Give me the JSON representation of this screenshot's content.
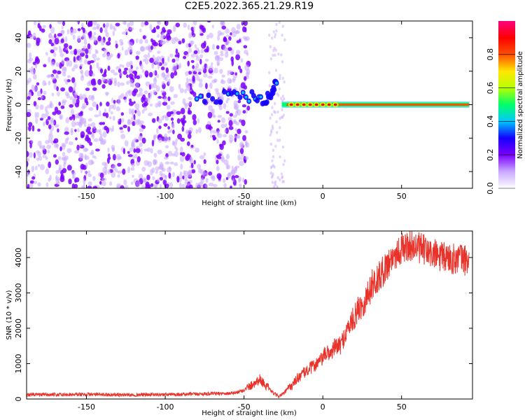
{
  "title": "C2E5.2022.365.21.29.R19",
  "chart_data": [
    {
      "type": "heatmap",
      "xlabel": "Height of straight line (km)",
      "ylabel": "Frequency (Hz)",
      "xlim": [
        -188,
        95
      ],
      "ylim": [
        -50,
        50
      ],
      "xticks": [
        -150,
        -100,
        -50,
        0,
        50
      ],
      "yticks": [
        -40,
        -20,
        0,
        20,
        40
      ],
      "colorbar": {
        "label": "Normalized spectral amplitude",
        "range": [
          0,
          1
        ],
        "ticks": [
          0.0,
          0.2,
          0.4,
          0.6,
          0.8
        ],
        "colors": [
          "#ffffff",
          "#c9a8ff",
          "#7b00ff",
          "#1500ff",
          "#00c8ff",
          "#00ff6a",
          "#b8ff00",
          "#ffe600",
          "#ff5000",
          "#ff0000",
          "#ff0080"
        ]
      },
      "features": {
        "noise_region_x": [
          -188,
          -55
        ],
        "gap_region_x": [
          -40,
          -26
        ],
        "converging_branch": [
          [
            -80,
            3
          ],
          [
            -60,
            5
          ],
          [
            -45,
            5
          ],
          [
            -36,
            3
          ],
          [
            -32,
            8
          ],
          [
            -29,
            16
          ]
        ],
        "carrier_line": {
          "y": 0,
          "x_start": -26,
          "x_end": 93,
          "bright_x": [
            -20,
            12
          ]
        }
      },
      "grid": false
    },
    {
      "type": "line",
      "xlabel": "Height of straight line (km)",
      "ylabel": "SNR (10 * v/v)",
      "xlim": [
        -188,
        95
      ],
      "ylim": [
        0,
        4750
      ],
      "xticks": [
        -150,
        -100,
        -50,
        0,
        50
      ],
      "yticks": [
        0,
        1000,
        2000,
        3000,
        4000
      ],
      "color": "#e8322a",
      "series": [
        {
          "x": [
            -188,
            -170,
            -150,
            -130,
            -110,
            -90,
            -70,
            -60,
            -55,
            -50,
            -45,
            -40,
            -37,
            -34,
            -31,
            -28,
            -25,
            -22,
            -19,
            -16,
            -13,
            -10,
            -7,
            -4,
            -1,
            2,
            5,
            8,
            11,
            14,
            17,
            20,
            23,
            26,
            29,
            32,
            35,
            38,
            41,
            44,
            47,
            50,
            53,
            56,
            59,
            62,
            65,
            68,
            71,
            74,
            77,
            80,
            83,
            86,
            89,
            93
          ],
          "values": [
            120,
            120,
            130,
            120,
            120,
            130,
            150,
            160,
            180,
            250,
            400,
            560,
            420,
            280,
            150,
            80,
            150,
            300,
            400,
            600,
            700,
            800,
            900,
            1000,
            1100,
            1300,
            1300,
            1500,
            1500,
            1800,
            2100,
            2300,
            2600,
            2700,
            3000,
            3300,
            3400,
            3600,
            3800,
            4000,
            4150,
            4250,
            4300,
            4350,
            4300,
            4250,
            4200,
            4100,
            4100,
            4000,
            4000,
            4000,
            3950,
            4000,
            3950,
            3900
          ]
        }
      ],
      "grid": false
    }
  ]
}
